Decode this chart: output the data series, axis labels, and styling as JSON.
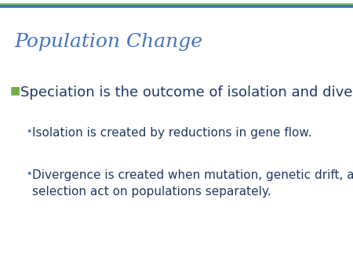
{
  "title": "Population Change",
  "title_color": "#4472C4",
  "title_fontstyle": "italic",
  "title_fontsize": 18,
  "background_color": "#FFFFFF",
  "top_line_color": "#4472C4",
  "top_line_thin_color": "#92D050",
  "bullet1_text": "Speciation is the outcome of isolation and divergence.",
  "bullet1_color": "#1F3864",
  "bullet1_marker_color": "#70AD47",
  "bullet1_fontsize": 13,
  "sub_bullet_color": "#4472C4",
  "sub_bullet_fontsize": 11,
  "sub_bullet1": "Isolation is created by reductions in gene flow.",
  "sub_bullet2_line1": "Divergence is created when mutation, genetic drift, and",
  "sub_bullet2_line2": "selection act on populations separately.",
  "text_color": "#1F3864",
  "figsize": [
    4.5,
    3.38
  ],
  "dpi": 100
}
